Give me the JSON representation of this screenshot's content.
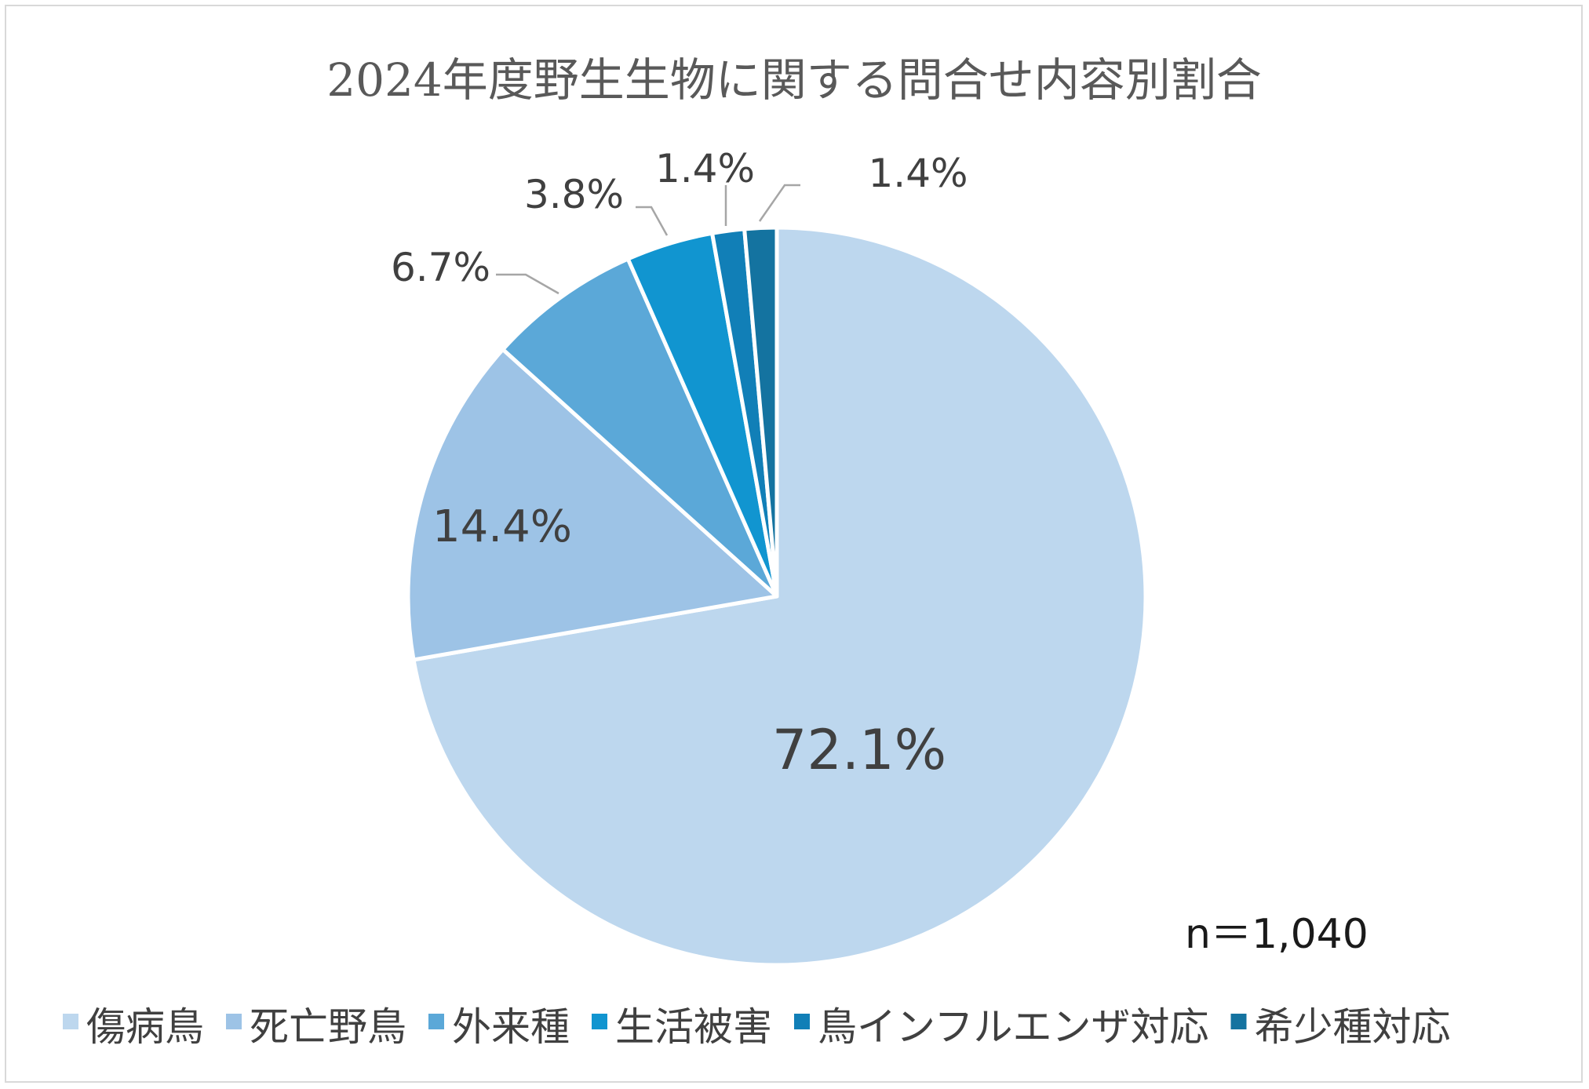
{
  "chart_data": {
    "type": "pie",
    "title": "2024年度野生生物に関する問合せ内容別割合",
    "categories": [
      "傷病鳥",
      "死亡野鳥",
      "外来種",
      "生活被害",
      "鳥インフルエンザ対応",
      "希少種対応"
    ],
    "values": [
      72.1,
      14.4,
      6.7,
      3.8,
      1.4,
      1.4
    ],
    "labels": [
      "72.1%",
      "14.4%",
      "6.7%",
      "3.8%",
      "1.4%",
      "1.4%"
    ],
    "colors": [
      "#bdd7ee",
      "#9dc3e6",
      "#5ba8d8",
      "#1195d0",
      "#117fb7",
      "#1473a0"
    ],
    "legend_position": "bottom",
    "note": "n＝1,040"
  }
}
